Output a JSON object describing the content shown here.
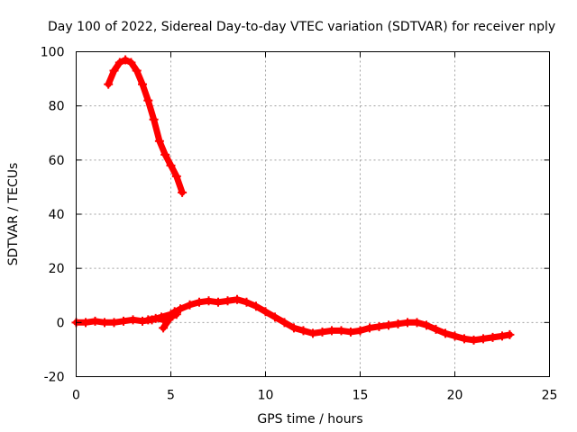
{
  "chart_data": {
    "type": "scatter",
    "title": "Day 100 of 2022, Sidereal Day-to-day VTEC variation (SDTVAR) for receiver nply",
    "xlabel": "GPS time / hours",
    "ylabel": "SDTVAR / TECUs",
    "xlim": [
      0,
      25
    ],
    "ylim": [
      -20,
      100
    ],
    "xticks": [
      0,
      5,
      10,
      15,
      20,
      25
    ],
    "yticks": [
      -20,
      0,
      20,
      40,
      60,
      80,
      100
    ],
    "xtick_labels": [
      "0",
      "5",
      "10",
      "15",
      "20",
      "25"
    ],
    "ytick_labels": [
      "-20",
      "0",
      "20",
      "40",
      "60",
      "80",
      "100"
    ],
    "grid": true,
    "legend": "none",
    "color": "#ff0000",
    "series": [
      {
        "name": "segment-1",
        "x": [
          1.7,
          2.0,
          2.3,
          2.6,
          2.9,
          3.2,
          3.5,
          3.8,
          4.1,
          4.4,
          4.7,
          5.0,
          5.3,
          5.6
        ],
        "y": [
          88,
          93,
          96,
          97,
          96,
          93,
          88,
          82,
          75,
          67,
          62,
          58,
          54,
          48
        ]
      },
      {
        "name": "segment-2",
        "x": [
          0.0,
          0.5,
          1.0,
          1.5,
          2.0,
          2.5,
          3.0,
          3.5,
          4.0,
          4.5,
          5.0,
          5.5,
          6.0,
          6.5,
          7.0,
          7.5,
          8.0,
          8.5,
          9.0,
          9.5,
          10.0,
          10.5,
          11.0,
          11.5,
          12.0,
          12.5,
          13.0,
          13.5,
          14.0,
          14.5,
          15.0,
          15.5,
          16.0,
          16.5,
          17.0,
          17.5,
          18.0,
          18.5,
          19.0,
          19.5,
          20.0,
          20.5,
          21.0,
          21.5,
          22.0,
          22.5,
          22.9
        ],
        "y": [
          0,
          0,
          0.5,
          0,
          0,
          0.5,
          1,
          0.5,
          1,
          2,
          3,
          5,
          6.5,
          7.5,
          8,
          7.5,
          8,
          8.5,
          7.5,
          6,
          4,
          2,
          0,
          -2,
          -3,
          -4,
          -3.5,
          -3,
          -3,
          -3.5,
          -3,
          -2,
          -1.5,
          -1,
          -0.5,
          0,
          0,
          -1,
          -2.5,
          -4,
          -5,
          -6,
          -6.5,
          -6,
          -5.5,
          -5,
          -4.5
        ]
      },
      {
        "name": "segment-3",
        "x": [
          3.8,
          4.2,
          4.6,
          5.0,
          5.3
        ],
        "y": [
          1,
          1.5,
          1,
          2,
          3
        ]
      },
      {
        "name": "segment-4",
        "x": [
          4.6,
          4.9,
          5.2
        ],
        "y": [
          -2,
          1,
          4
        ]
      }
    ]
  }
}
